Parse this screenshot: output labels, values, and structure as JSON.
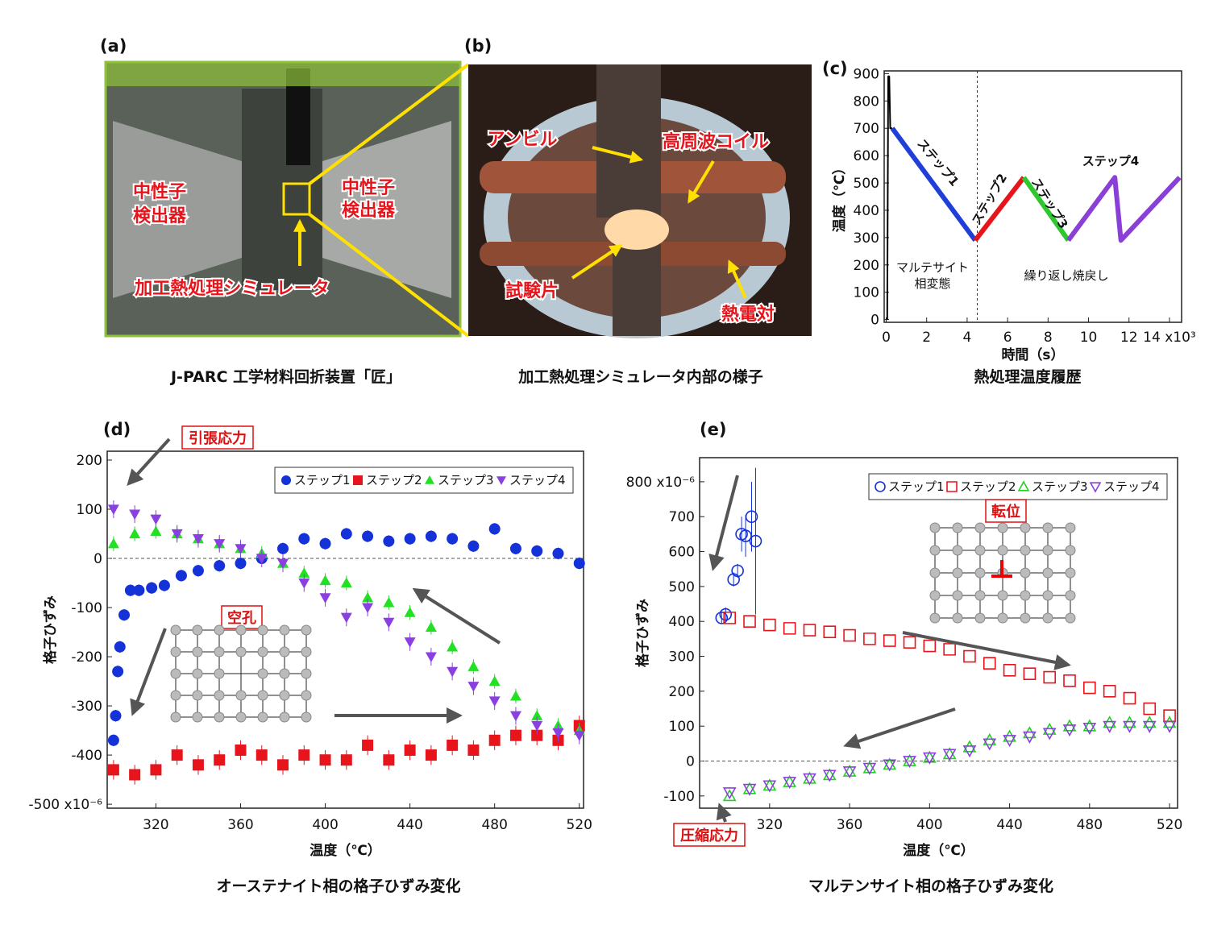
{
  "photos": {
    "a": {
      "label": "(a)",
      "detector_left": [
        "中性子",
        "検出器"
      ],
      "detector_right": [
        "中性子",
        "検出器"
      ],
      "simulator": "加工熱処理シミュレータ",
      "caption": "J-PARC 工学材料回折装置「匠」"
    },
    "b": {
      "label": "(b)",
      "anvil": "アンビル",
      "coil": "高周波コイル",
      "specimen": "試験片",
      "thermocouple": "熱電対",
      "caption": "加工熱処理シミュレータ内部の様子"
    }
  },
  "chart_data": [
    {
      "type": "line",
      "panel": "(c)",
      "xlabel": "時間（s）",
      "ylabel": "温度（℃）",
      "caption": "熱処理温度履歴",
      "xlim": [
        -0.1,
        14.6
      ],
      "xticks": [
        0,
        2,
        4,
        6,
        8,
        10,
        12,
        {
          "value": 14,
          "label": "14 x10³"
        }
      ],
      "ylim": [
        -10,
        910
      ],
      "yticks": [
        0,
        100,
        200,
        300,
        400,
        500,
        600,
        700,
        800,
        900
      ],
      "vline": 4.5,
      "series": [
        {
          "color": "#000000",
          "x": [
            0.05,
            0.1,
            0.15,
            0.2,
            0.3
          ],
          "values": [
            0,
            890,
            890,
            700,
            700
          ]
        },
        {
          "color": "#1f3fd8",
          "x": [
            0.3,
            4.4
          ],
          "values": [
            700,
            290
          ]
        },
        {
          "color": "#e8141b",
          "x": [
            4.4,
            6.8
          ],
          "values": [
            290,
            520
          ]
        },
        {
          "color": "#2ec82e",
          "x": [
            6.8,
            9.0
          ],
          "values": [
            520,
            290
          ]
        },
        {
          "color": "#8a3fd6",
          "x": [
            9.0,
            11.3,
            11.6,
            14.5
          ],
          "values": [
            290,
            520,
            290,
            520
          ]
        }
      ],
      "annotations": [
        "ステップ1",
        "ステップ2",
        "ステップ3",
        "ステップ4",
        "繰り返し焼戻し"
      ],
      "phase_note": [
        "マルテサイト",
        "相変態"
      ]
    },
    {
      "type": "scatter",
      "panel": "(d)",
      "xlabel": "温度（℃）",
      "ylabel": "格子ひずみ",
      "caption": "オーステナイト相の格子ひずみ変化",
      "xlim": [
        297,
        522
      ],
      "xticks": [
        320,
        360,
        400,
        440,
        480,
        520
      ],
      "ylim": [
        -508,
        218
      ],
      "yticks": [
        {
          "value": -500,
          "label": "-500 x10⁻⁶"
        },
        -400,
        -300,
        -200,
        -100,
        0,
        100,
        200
      ],
      "zero_line": true,
      "legend": "top-right",
      "marker_style": "filled",
      "series": [
        {
          "name": "ステップ1",
          "color": "#1432d8",
          "marker": "circle",
          "error": 12,
          "x": [
            300,
            301,
            302,
            303,
            305,
            308,
            312,
            318,
            324,
            332,
            340,
            350,
            360,
            370,
            380,
            390,
            400,
            410,
            420,
            430,
            440,
            450,
            460,
            470,
            480,
            490,
            500,
            510,
            520
          ],
          "values": [
            -370,
            -320,
            -230,
            -180,
            -115,
            -65,
            -65,
            -60,
            -55,
            -35,
            -25,
            -15,
            -10,
            0,
            20,
            40,
            30,
            50,
            45,
            35,
            40,
            45,
            40,
            25,
            60,
            20,
            15,
            10,
            -10
          ]
        },
        {
          "name": "ステップ2",
          "color": "#e8141b",
          "marker": "square",
          "error": 20,
          "x": [
            300,
            310,
            320,
            330,
            340,
            350,
            360,
            370,
            380,
            390,
            400,
            410,
            420,
            430,
            440,
            450,
            460,
            470,
            480,
            490,
            500,
            510,
            520
          ],
          "values": [
            -430,
            -440,
            -430,
            -400,
            -420,
            -410,
            -390,
            -400,
            -420,
            -400,
            -410,
            -410,
            -380,
            -410,
            -390,
            -400,
            -380,
            -390,
            -370,
            -360,
            -360,
            -370,
            -340
          ]
        },
        {
          "name": "ステップ3",
          "color": "#22e022",
          "marker": "tri-up",
          "error": 15,
          "x": [
            300,
            310,
            320,
            330,
            340,
            350,
            360,
            370,
            380,
            390,
            400,
            410,
            420,
            430,
            440,
            450,
            460,
            470,
            480,
            490,
            500,
            510,
            520
          ],
          "values": [
            30,
            50,
            55,
            50,
            40,
            30,
            20,
            10,
            -10,
            -30,
            -45,
            -50,
            -80,
            -90,
            -110,
            -140,
            -180,
            -220,
            -250,
            -280,
            -320,
            -340,
            -350
          ]
        },
        {
          "name": "ステップ4",
          "color": "#8a3fe0",
          "marker": "tri-down",
          "error": 18,
          "x": [
            300,
            310,
            320,
            330,
            340,
            350,
            360,
            370,
            380,
            390,
            400,
            410,
            420,
            430,
            440,
            450,
            460,
            470,
            480,
            490,
            500,
            510,
            520
          ],
          "values": [
            100,
            90,
            80,
            50,
            40,
            30,
            20,
            0,
            -10,
            -50,
            -80,
            -120,
            -100,
            -130,
            -170,
            -200,
            -230,
            -260,
            -290,
            -320,
            -340,
            -355,
            -360
          ]
        }
      ],
      "annotations": [
        "引張応力",
        "空孔"
      ]
    },
    {
      "type": "scatter",
      "panel": "(e)",
      "xlabel": "温度（℃）",
      "ylabel": "格子ひずみ",
      "caption": "マルテンサイト相の格子ひずみ変化",
      "xlim": [
        285,
        524
      ],
      "xticks": [
        320,
        360,
        400,
        440,
        480,
        520
      ],
      "ylim": [
        -135,
        869
      ],
      "yticks": [
        -100,
        0,
        100,
        200,
        300,
        400,
        500,
        600,
        700,
        {
          "value": 800,
          "label": "800 x10⁻⁶"
        }
      ],
      "zero_line": true,
      "legend": "top-right",
      "marker_style": "open",
      "series": [
        {
          "name": "ステップ1",
          "color": "#1432d8",
          "marker": "circle",
          "x": [
            296,
            298,
            302,
            304,
            306,
            308,
            311,
            313
          ],
          "values": [
            410,
            420,
            520,
            545,
            650,
            645,
            700,
            630
          ],
          "errors": [
            15,
            20,
            20,
            20,
            50,
            60,
            100,
            210
          ]
        },
        {
          "name": "ステップ2",
          "color": "#e8141b",
          "marker": "square",
          "x": [
            300,
            310,
            320,
            330,
            340,
            350,
            360,
            370,
            380,
            390,
            400,
            410,
            420,
            430,
            440,
            450,
            460,
            470,
            480,
            490,
            500,
            510,
            520
          ],
          "values": [
            410,
            400,
            390,
            380,
            375,
            370,
            360,
            350,
            345,
            340,
            330,
            320,
            300,
            280,
            260,
            250,
            240,
            230,
            210,
            200,
            180,
            150,
            130
          ]
        },
        {
          "name": "ステップ3",
          "color": "#22d022",
          "marker": "tri-up",
          "x": [
            300,
            310,
            320,
            330,
            340,
            350,
            360,
            370,
            380,
            390,
            400,
            410,
            420,
            430,
            440,
            450,
            460,
            470,
            480,
            490,
            500,
            510,
            520
          ],
          "values": [
            -100,
            -80,
            -70,
            -60,
            -50,
            -40,
            -30,
            -20,
            -10,
            0,
            10,
            20,
            40,
            60,
            70,
            80,
            90,
            100,
            100,
            110,
            110,
            110,
            110
          ]
        },
        {
          "name": "ステップ4",
          "color": "#8a3fe0",
          "marker": "tri-down",
          "x": [
            300,
            310,
            320,
            330,
            340,
            350,
            360,
            370,
            380,
            390,
            400,
            410,
            420,
            430,
            440,
            450,
            460,
            470,
            480,
            490,
            500,
            510,
            520
          ],
          "values": [
            -90,
            -80,
            -70,
            -60,
            -50,
            -40,
            -30,
            -20,
            -10,
            0,
            10,
            20,
            30,
            50,
            60,
            70,
            80,
            90,
            95,
            100,
            100,
            100,
            100
          ]
        }
      ],
      "annotations": [
        "転位",
        "圧縮応力"
      ]
    }
  ]
}
